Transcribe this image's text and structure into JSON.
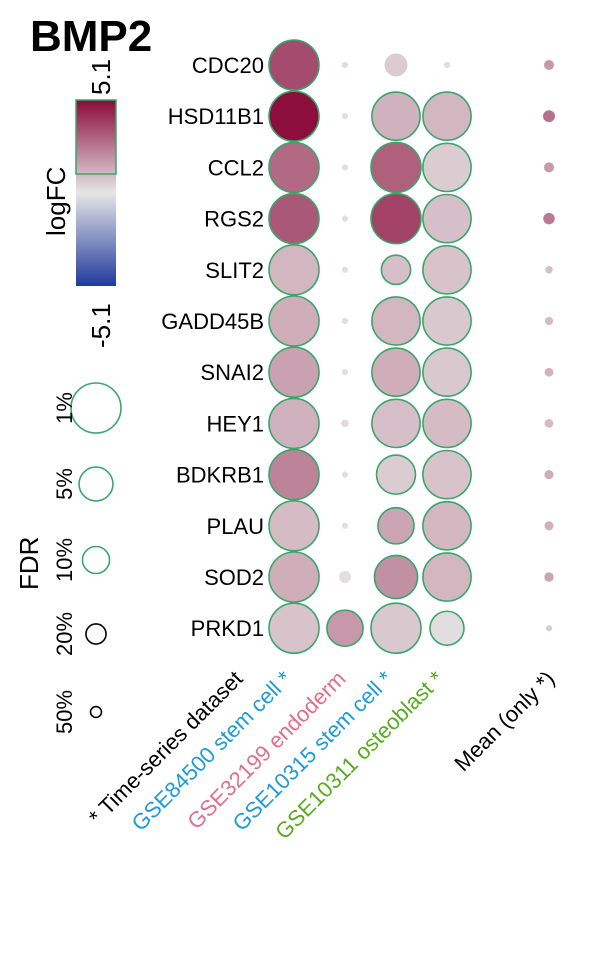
{
  "chart_data": {
    "type": "bubble-heatmap",
    "title": "BMP2",
    "colorbar": {
      "label": "logFC",
      "max_label": "5.1",
      "min_label": "-5.1",
      "min": -5.1,
      "max": 5.1,
      "low_color": "#1f3a9c",
      "mid_color": "#e6e6e6",
      "high_color": "#8a0a3a",
      "frame_color": "#3aa66a"
    },
    "size_legend": {
      "label": "FDR",
      "levels": [
        {
          "label": "1%",
          "fdr": 0.01
        },
        {
          "label": "5%",
          "fdr": 0.05
        },
        {
          "label": "10%",
          "fdr": 0.1
        },
        {
          "label": "20%",
          "fdr": 0.2
        },
        {
          "label": "50%",
          "fdr": 0.5
        }
      ]
    },
    "significant_outline_color": "#3aa66a",
    "genes": [
      "CDC20",
      "HSD11B1",
      "CCL2",
      "RGS2",
      "SLIT2",
      "GADD45B",
      "SNAI2",
      "HEY1",
      "BDKRB1",
      "PLAU",
      "SOD2",
      "PRKD1"
    ],
    "columns": [
      {
        "label": "* Time-series dataset",
        "color": "#000000"
      },
      {
        "label": "GSE84500 stem cell *",
        "color": "#1e9bd7"
      },
      {
        "label": "GSE32199 endoderm",
        "color": "#e0708a"
      },
      {
        "label": "GSE10315 stem cell *",
        "color": "#1e9bd7"
      },
      {
        "label": "GSE10311 osteoblast *",
        "color": "#5aaa22"
      },
      {
        "label": "Mean (only *)",
        "color": "#000000"
      }
    ],
    "datasets": [
      {
        "name": "GSE84500 stem cell *",
        "logfc": [
          3.6,
          5.0,
          2.9,
          3.3,
          1.1,
          1.3,
          1.6,
          1.2,
          2.3,
          1.0,
          1.3,
          0.8
        ],
        "fdr": [
          0.005,
          0.005,
          0.005,
          0.005,
          0.005,
          0.005,
          0.005,
          0.005,
          0.005,
          0.005,
          0.005,
          0.005
        ]
      },
      {
        "name": "GSE32199 endoderm",
        "logfc": [
          0.3,
          0.2,
          0.2,
          0.2,
          0.2,
          0.2,
          0.2,
          0.3,
          0.2,
          0.2,
          0.2,
          1.8
        ],
        "fdr": [
          0.8,
          0.8,
          0.8,
          0.8,
          0.8,
          0.8,
          0.8,
          0.7,
          0.8,
          0.8,
          0.45,
          0.04
        ]
      },
      {
        "name": "GSE10315 stem cell *",
        "logfc": [
          0.6,
          1.2,
          3.1,
          3.8,
          0.9,
          1.1,
          1.3,
          0.9,
          0.6,
          1.5,
          2.0,
          0.7
        ],
        "fdr": [
          0.15,
          0.012,
          0.008,
          0.008,
          0.08,
          0.012,
          0.012,
          0.012,
          0.03,
          0.04,
          0.02,
          0.008
        ]
      },
      {
        "name": "GSE10311 osteoblast *",
        "logfc": [
          0.3,
          1.1,
          0.6,
          0.9,
          0.8,
          0.7,
          0.7,
          1.0,
          0.8,
          1.1,
          1.1,
          0.2
        ],
        "fdr": [
          0.8,
          0.012,
          0.012,
          0.012,
          0.012,
          0.012,
          0.012,
          0.012,
          0.012,
          0.012,
          0.012,
          0.05
        ]
      },
      {
        "name": "Mean (only *)",
        "logfc": [
          1.8,
          2.7,
          1.8,
          2.5,
          0.9,
          1.0,
          1.2,
          1.0,
          1.3,
          1.2,
          1.5,
          0.6
        ],
        "fdr": [
          0.55,
          0.45,
          0.55,
          0.47,
          0.7,
          0.65,
          0.62,
          0.62,
          0.6,
          0.6,
          0.58,
          0.8
        ]
      }
    ]
  }
}
